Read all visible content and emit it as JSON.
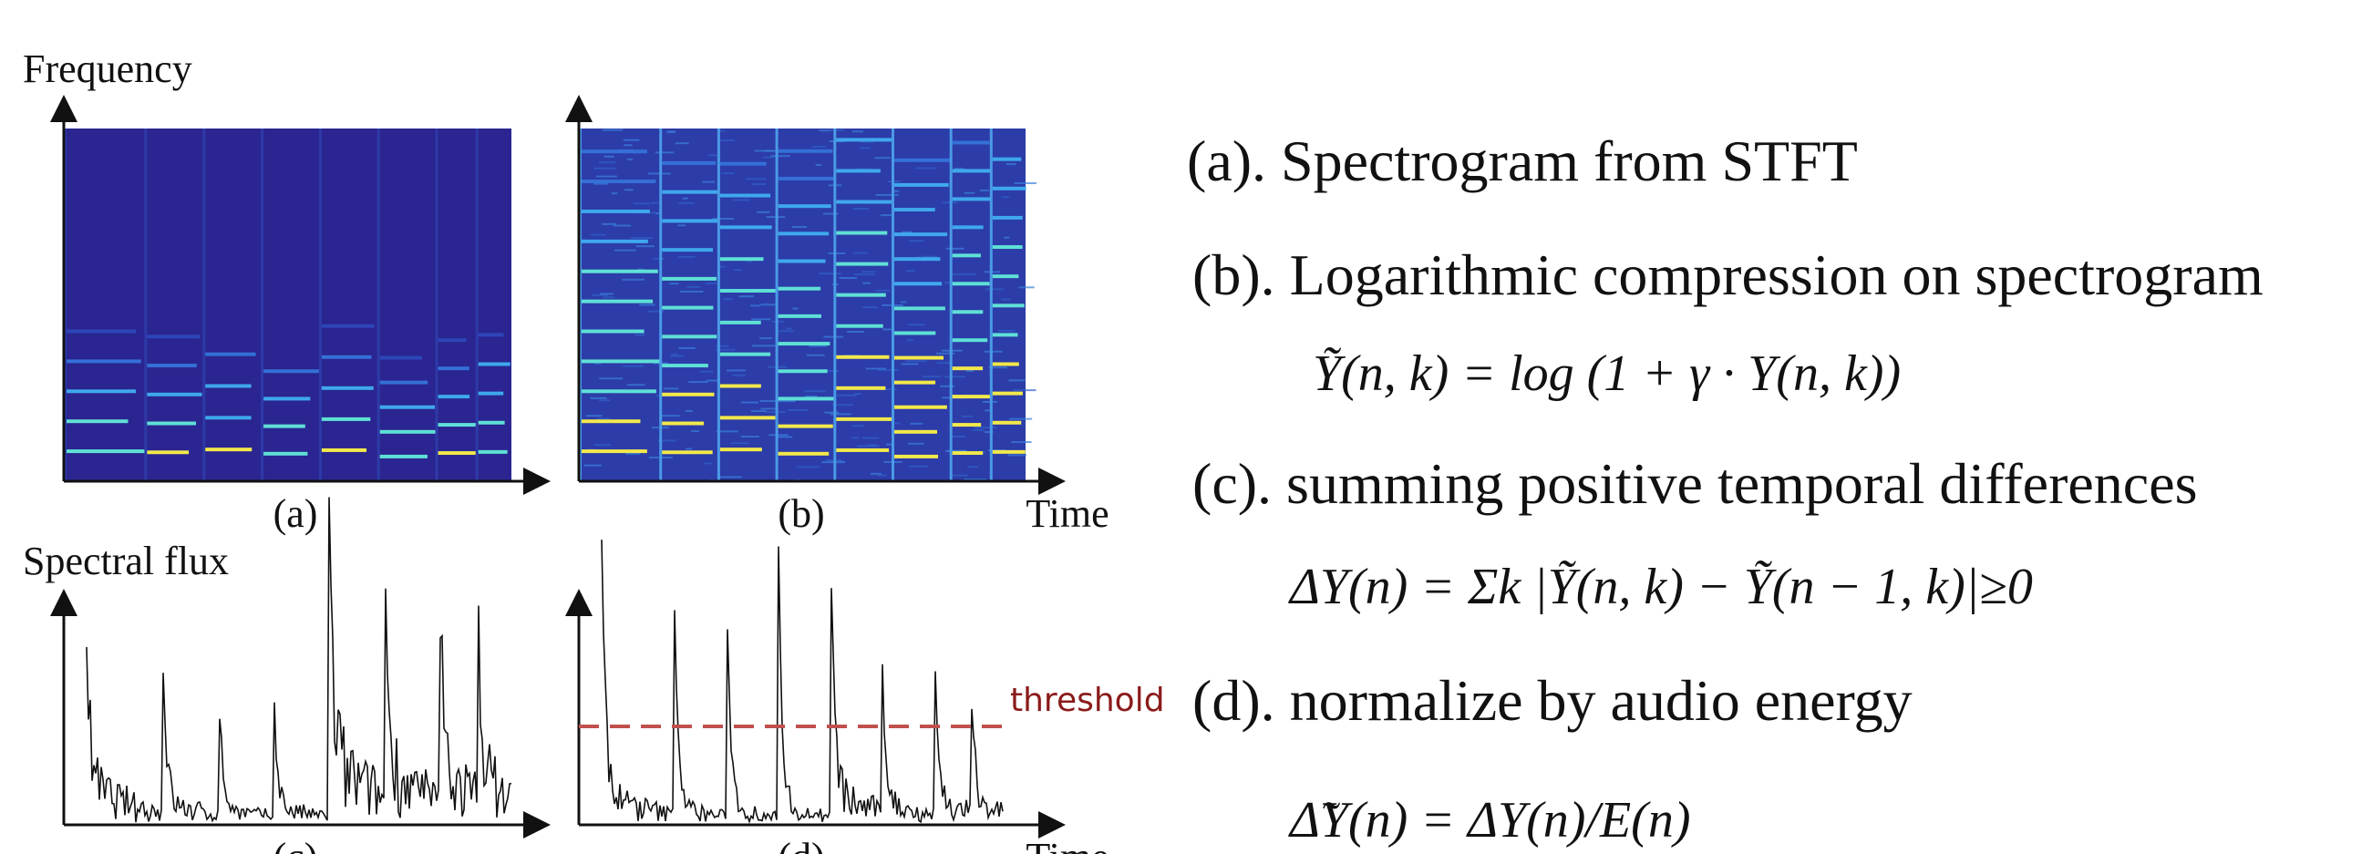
{
  "figure": {
    "frequency_label": "Frequency",
    "time_label": "Time",
    "spectral_flux_label": "Spectral flux",
    "panel_labels": [
      "(a)",
      "(b)",
      "(c)",
      "(d)"
    ],
    "threshold_label": "threshold"
  },
  "steps": [
    {
      "label": "(a). Spectrogram from STFT"
    },
    {
      "label": "(b). Logarithmic compression on spectrogram",
      "equation": "Ỹ(n, k) = log (1 + γ · Y(n, k))"
    },
    {
      "label": "(c). summing positive temporal differences",
      "equation": "ΔY(n) = Σk |Ỹ(n, k) − Ỹ(n − 1, k)|≥0"
    },
    {
      "label": "(d). normalize by audio energy",
      "equation": "Δ̃Y(n) = ΔY(n)/E(n)"
    }
  ]
}
